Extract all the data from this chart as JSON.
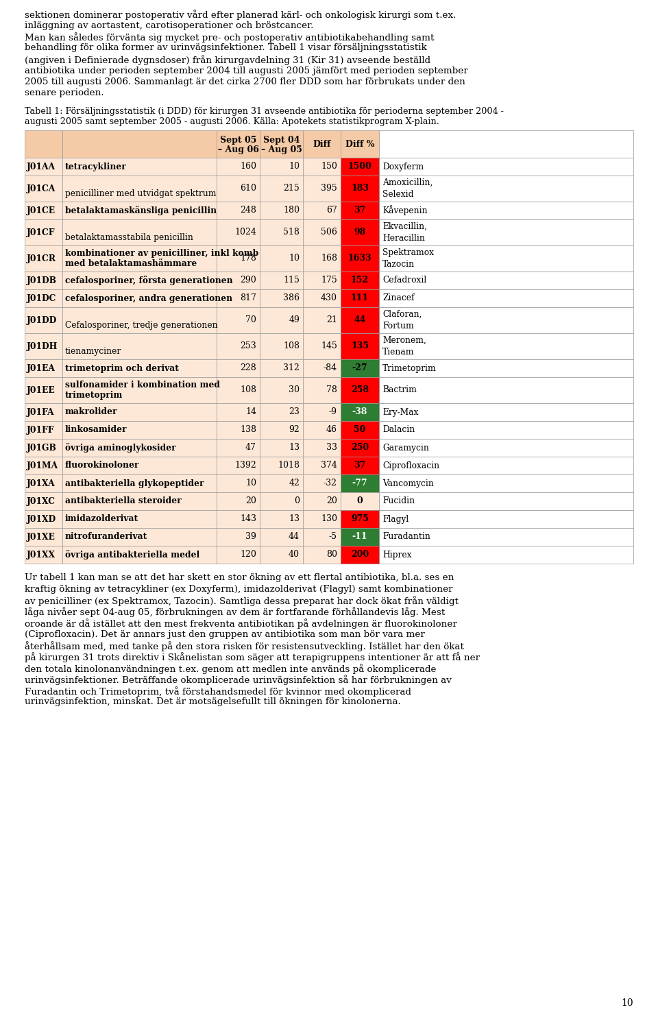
{
  "page_bg": "#ffffff",
  "top_text_lines": [
    "sektionen dominerar postoperativ vård efter planerad kärl- och onkologisk kirurgi som t.ex.",
    "inläggning av aortastent, carotisoperationer och bröstcancer.",
    "Man kan således förvänta sig mycket pre- och postoperativ antibiotikabehandling samt",
    "behandling för olika former av urinvägsinfektioner. Tabell 1 visar försäljningsstatistik",
    "(angiven i Definierade dygnsdoser) från kirurgavdelning 31 (Kir 31) avseende beställd",
    "antibiotika under perioden september 2004 till augusti 2005 jämfört med perioden september",
    "2005 till augusti 2006. Sammanlagt är det cirka 2700 fler DDD som har förbrukats under den",
    "senare perioden."
  ],
  "caption_lines": [
    "Tabell 1: Försäljningsstatistik (i DDD) för kirurgen 31 avseende antibiotika för perioderna september 2004 -",
    "augusti 2005 samt september 2005 - augusti 2006. Källa: Apotekets statistikprogram X-plain."
  ],
  "header_bg": "#f5cba7",
  "row_bg": "#fde8d8",
  "white_bg": "#ffffff",
  "rows": [
    {
      "code": "J01AA",
      "desc_top": "tetracykliner",
      "desc_bottom": "",
      "desc_bold": true,
      "sept05": "160",
      "sept04": "10",
      "diff": "150",
      "diff_pct": "1500",
      "diff_pct_color": "#ff0000",
      "diff_pct_text_color": "#000000",
      "drug_top": "Doxyferm",
      "drug_bottom": ""
    },
    {
      "code": "J01CA",
      "desc_top": "",
      "desc_bottom": "penicilliner med utvidgat spektrum",
      "desc_bold": false,
      "sept05": "610",
      "sept04": "215",
      "diff": "395",
      "diff_pct": "183",
      "diff_pct_color": "#ff0000",
      "diff_pct_text_color": "#000000",
      "drug_top": "Amoxicillin,",
      "drug_bottom": "Selexid"
    },
    {
      "code": "J01CE",
      "desc_top": "betalaktamaskänsliga penicillin",
      "desc_bottom": "",
      "desc_bold": true,
      "sept05": "248",
      "sept04": "180",
      "diff": "67",
      "diff_pct": "37",
      "diff_pct_color": "#ff0000",
      "diff_pct_text_color": "#000000",
      "drug_top": "Kåvepenin",
      "drug_bottom": ""
    },
    {
      "code": "J01CF",
      "desc_top": "",
      "desc_bottom": "betalaktamasstabila penicillin",
      "desc_bold": false,
      "sept05": "1024",
      "sept04": "518",
      "diff": "506",
      "diff_pct": "98",
      "diff_pct_color": "#ff0000",
      "diff_pct_text_color": "#000000",
      "drug_top": "Ekvacillin,",
      "drug_bottom": "Heracillin"
    },
    {
      "code": "J01CR",
      "desc_top": "kombinationer av penicilliner, inkl komb",
      "desc_bottom": "med betalaktamashämmare",
      "desc_bold": true,
      "sept05": "178",
      "sept04": "10",
      "diff": "168",
      "diff_pct": "1633",
      "diff_pct_color": "#ff0000",
      "diff_pct_text_color": "#000000",
      "drug_top": "Spektramox",
      "drug_bottom": "Tazocin"
    },
    {
      "code": "J01DB",
      "desc_top": "cefalosporiner, första generationen",
      "desc_bottom": "",
      "desc_bold": true,
      "sept05": "290",
      "sept04": "115",
      "diff": "175",
      "diff_pct": "152",
      "diff_pct_color": "#ff0000",
      "diff_pct_text_color": "#000000",
      "drug_top": "Cefadroxil",
      "drug_bottom": ""
    },
    {
      "code": "J01DC",
      "desc_top": "cefalosporiner, andra generationen",
      "desc_bottom": "",
      "desc_bold": true,
      "sept05": "817",
      "sept04": "386",
      "diff": "430",
      "diff_pct": "111",
      "diff_pct_color": "#ff0000",
      "diff_pct_text_color": "#000000",
      "drug_top": "Zinacef",
      "drug_bottom": ""
    },
    {
      "code": "J01DD",
      "desc_top": "",
      "desc_bottom": "Cefalosporiner, tredje generationen",
      "desc_bold": false,
      "sept05": "70",
      "sept04": "49",
      "diff": "21",
      "diff_pct": "44",
      "diff_pct_color": "#ff0000",
      "diff_pct_text_color": "#000000",
      "drug_top": "Claforan,",
      "drug_bottom": "Fortum"
    },
    {
      "code": "J01DH",
      "desc_top": "",
      "desc_bottom": "tienamyciner",
      "desc_bold": false,
      "sept05": "253",
      "sept04": "108",
      "diff": "145",
      "diff_pct": "135",
      "diff_pct_color": "#ff0000",
      "diff_pct_text_color": "#000000",
      "drug_top": "Meronem,",
      "drug_bottom": "Tienam"
    },
    {
      "code": "J01EA",
      "desc_top": "trimetoprim och derivat",
      "desc_bottom": "",
      "desc_bold": true,
      "sept05": "228",
      "sept04": "312",
      "diff": "-84",
      "diff_pct": "-27",
      "diff_pct_color": "#2e7d32",
      "diff_pct_text_color": "#000000",
      "drug_top": "Trimetoprim",
      "drug_bottom": ""
    },
    {
      "code": "J01EE",
      "desc_top": "sulfonamider i kombination med",
      "desc_bottom": "trimetoprim",
      "desc_bold": true,
      "sept05": "108",
      "sept04": "30",
      "diff": "78",
      "diff_pct": "258",
      "diff_pct_color": "#ff0000",
      "diff_pct_text_color": "#000000",
      "drug_top": "Bactrim",
      "drug_bottom": ""
    },
    {
      "code": "J01FA",
      "desc_top": "makrolider",
      "desc_bottom": "",
      "desc_bold": true,
      "sept05": "14",
      "sept04": "23",
      "diff": "-9",
      "diff_pct": "-38",
      "diff_pct_color": "#2e7d32",
      "diff_pct_text_color": "#ffffff",
      "drug_top": "Ery-Max",
      "drug_bottom": ""
    },
    {
      "code": "J01FF",
      "desc_top": "linkosamider",
      "desc_bottom": "",
      "desc_bold": true,
      "sept05": "138",
      "sept04": "92",
      "diff": "46",
      "diff_pct": "50",
      "diff_pct_color": "#ff0000",
      "diff_pct_text_color": "#000000",
      "drug_top": "Dalacin",
      "drug_bottom": ""
    },
    {
      "code": "J01GB",
      "desc_top": "övriga aminoglykosider",
      "desc_bottom": "",
      "desc_bold": true,
      "sept05": "47",
      "sept04": "13",
      "diff": "33",
      "diff_pct": "250",
      "diff_pct_color": "#ff0000",
      "diff_pct_text_color": "#000000",
      "drug_top": "Garamycin",
      "drug_bottom": ""
    },
    {
      "code": "J01MA",
      "desc_top": "fluorokinoloner",
      "desc_bottom": "",
      "desc_bold": true,
      "sept05": "1392",
      "sept04": "1018",
      "diff": "374",
      "diff_pct": "37",
      "diff_pct_color": "#ff0000",
      "diff_pct_text_color": "#000000",
      "drug_top": "Ciprofloxacin",
      "drug_bottom": ""
    },
    {
      "code": "J01XA",
      "desc_top": "antibakteriella glykopeptider",
      "desc_bottom": "",
      "desc_bold": true,
      "sept05": "10",
      "sept04": "42",
      "diff": "-32",
      "diff_pct": "-77",
      "diff_pct_color": "#2e7d32",
      "diff_pct_text_color": "#ffffff",
      "drug_top": "Vancomycin",
      "drug_bottom": ""
    },
    {
      "code": "J01XC",
      "desc_top": "antibakteriella steroider",
      "desc_bottom": "",
      "desc_bold": true,
      "sept05": "20",
      "sept04": "0",
      "diff": "20",
      "diff_pct": "0",
      "diff_pct_color": "#fde8d8",
      "diff_pct_text_color": "#000000",
      "drug_top": "Fucidin",
      "drug_bottom": ""
    },
    {
      "code": "J01XD",
      "desc_top": "imidazolderivat",
      "desc_bottom": "",
      "desc_bold": true,
      "sept05": "143",
      "sept04": "13",
      "diff": "130",
      "diff_pct": "975",
      "diff_pct_color": "#ff0000",
      "diff_pct_text_color": "#000000",
      "drug_top": "Flagyl",
      "drug_bottom": ""
    },
    {
      "code": "J01XE",
      "desc_top": "nitrofuranderivat",
      "desc_bottom": "",
      "desc_bold": true,
      "sept05": "39",
      "sept04": "44",
      "diff": "-5",
      "diff_pct": "-11",
      "diff_pct_color": "#2e7d32",
      "diff_pct_text_color": "#ffffff",
      "drug_top": "Furadantin",
      "drug_bottom": ""
    },
    {
      "code": "J01XX",
      "desc_top": "övriga antibakteriella medel",
      "desc_bottom": "",
      "desc_bold": true,
      "sept05": "120",
      "sept04": "40",
      "diff": "80",
      "diff_pct": "200",
      "diff_pct_color": "#ff0000",
      "diff_pct_text_color": "#000000",
      "drug_top": "Hiprex",
      "drug_bottom": ""
    }
  ],
  "bottom_text_lines": [
    "Ur tabell 1 kan man se att det har skett en stor ökning av ett flertal antibiotika, bl.a. ses en",
    "kraftig ökning av tetracykliner (ex Doxyferm), imidazolderivat (Flagyl) samt kombinationer",
    "av penicilliner (ex Spektramox, Tazocin). Samtliga dessa preparat har dock ökat från väldigt",
    "låga nivåer sept 04-aug 05, förbrukningen av dem är fortfarande förhållandevis låg. Mest",
    "oroande är då istället att den mest frekventa antibiotikan på avdelningen är fluorokinoloner",
    "(Ciprofloxacin). Det är annars just den gruppen av antibiotika som man bör vara mer",
    "återhållsam med, med tanke på den stora risken för resistensutveckling. Istället har den ökat",
    "på kirurgen 31 trots direktiv i Skånelistan som säger att terapigruppens intentioner är att få ner",
    "den totala kinolonanvändningen t.ex. genom att medlen inte används på okomplicerade",
    "urinvägsinfektioner. Beträffande okomplicerade urinvägsinfektion så har förbrukningen av",
    "Furadantin och Trimetoprim, två förstahandsmedel för kvinnor med okomplicerad",
    "urinvägsinfektion, minskat. Det är motsägelsefullt till ökningen för kinolonerna."
  ],
  "page_number": "10"
}
